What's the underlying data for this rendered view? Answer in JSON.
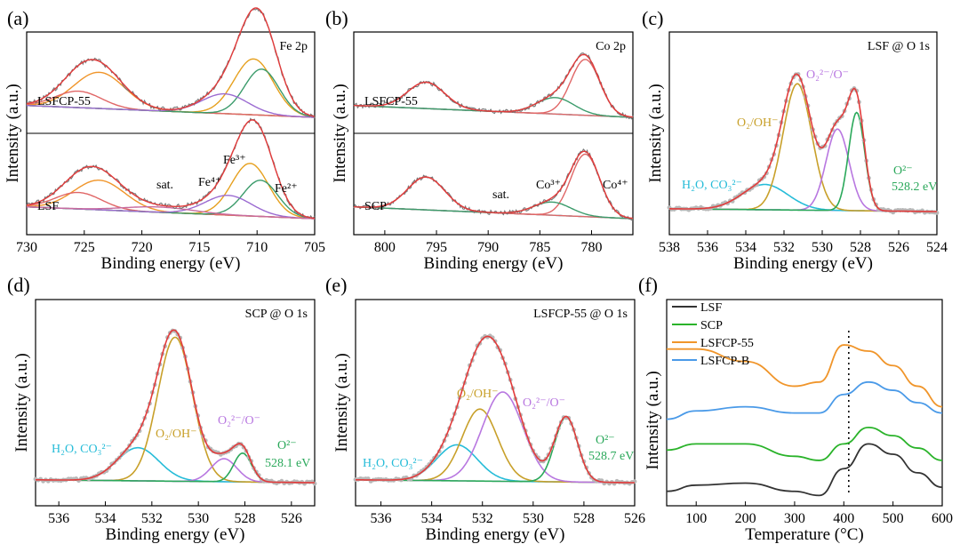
{
  "chart_data": [
    {
      "panel": "a",
      "panel_label": "(a)",
      "type": "line",
      "title": "Fe 2p",
      "xlabel": "Binding energy (eV)",
      "ylabel": "Intensity (a.u.)",
      "xlim": [
        730,
        705
      ],
      "xticks": [
        730,
        725,
        720,
        715,
        710,
        705
      ],
      "stacked_samples": [
        {
          "name": "LSFCP-55",
          "peaks": [
            {
              "center": 723.7,
              "height": 0.55,
              "width": 2.2,
              "color": "#f0952a"
            },
            {
              "center": 725.5,
              "height": 0.25,
              "width": 2.0,
              "color": "#e06666"
            },
            {
              "center": 710.3,
              "height": 0.85,
              "width": 1.7,
              "color": "#e6a01e"
            },
            {
              "center": 709.6,
              "height": 0.7,
              "width": 1.5,
              "color": "#3b9b6b"
            },
            {
              "center": 712.8,
              "height": 0.3,
              "width": 2.0,
              "color": "#9b6bd1"
            }
          ]
        },
        {
          "name": "LSF",
          "peaks": [
            {
              "center": 723.7,
              "height": 0.45,
              "width": 2.2,
              "color": "#f0952a"
            },
            {
              "center": 725.5,
              "height": 0.25,
              "width": 2.0,
              "color": "#e06666"
            },
            {
              "center": 710.6,
              "height": 0.8,
              "width": 1.6,
              "color": "#e6a01e"
            },
            {
              "center": 709.7,
              "height": 0.55,
              "width": 1.5,
              "color": "#3b9b6b"
            },
            {
              "center": 712.5,
              "height": 0.3,
              "width": 2.0,
              "color": "#9b6bd1"
            },
            {
              "center": 718.5,
              "height": 0.08,
              "width": 3.0,
              "color": "#c86b9e"
            }
          ]
        }
      ],
      "annotations": [
        "sat.",
        "Fe⁴⁺",
        "Fe³⁺",
        "Fe²⁺"
      ]
    },
    {
      "panel": "b",
      "panel_label": "(b)",
      "type": "line",
      "title": "Co 2p",
      "xlabel": "Binding energy (eV)",
      "ylabel": "Intensity (a.u.)",
      "xlim": [
        803,
        776
      ],
      "xticks": [
        800,
        795,
        790,
        785,
        780
      ],
      "stacked_samples": [
        {
          "name": "LSFCP-55",
          "peaks": [
            {
              "center": 796.0,
              "height": 0.4,
              "width": 1.8,
              "color": "#e06666"
            },
            {
              "center": 780.6,
              "height": 0.85,
              "width": 1.4,
              "color": "#e06666"
            },
            {
              "center": 783.5,
              "height": 0.25,
              "width": 1.8,
              "color": "#3b9b6b"
            }
          ]
        },
        {
          "name": "SCP",
          "peaks": [
            {
              "center": 796.0,
              "height": 0.5,
              "width": 1.8,
              "color": "#e06666"
            },
            {
              "center": 780.6,
              "height": 0.95,
              "width": 1.4,
              "color": "#e06666"
            },
            {
              "center": 783.8,
              "height": 0.2,
              "width": 1.8,
              "color": "#3b9b6b"
            }
          ]
        }
      ],
      "annotations": [
        "sat.",
        "Co³⁺",
        "Co⁴⁺"
      ]
    },
    {
      "panel": "c",
      "panel_label": "(c)",
      "type": "line",
      "title": "LSF @ O 1s",
      "xlabel": "Binding energy (eV)",
      "ylabel": "Intensity (a.u.)",
      "xlim": [
        538,
        524
      ],
      "xticks": [
        538,
        536,
        534,
        532,
        530,
        528,
        526,
        524
      ],
      "peaks": [
        {
          "name": "H₂O, CO₃²⁻",
          "center": 533.0,
          "height": 0.18,
          "width": 1.2,
          "color": "#26bcd8"
        },
        {
          "name": "O₂/OH⁻",
          "center": 531.3,
          "height": 0.9,
          "width": 0.75,
          "color": "#c8a02a"
        },
        {
          "name": "O₂²⁻/O⁻",
          "center": 529.2,
          "height": 0.58,
          "width": 0.6,
          "color": "#b877e0"
        },
        {
          "name": "O²⁻ 528.2 eV",
          "center": 528.2,
          "height": 0.7,
          "width": 0.42,
          "color": "#2aa85a"
        }
      ],
      "labels": {
        "h2o": "H₂O, CO₃²⁻",
        "o2oh": "O₂/OH⁻",
        "o22": "O₂²⁻/O⁻",
        "o2m": "O²⁻",
        "o2e": "528.2 eV"
      }
    },
    {
      "panel": "d",
      "panel_label": "(d)",
      "type": "line",
      "title": "SCP @ O 1s",
      "xlabel": "Binding energy (eV)",
      "ylabel": "Intensity (a.u.)",
      "xlim": [
        537,
        525
      ],
      "xticks": [
        536,
        534,
        532,
        530,
        528,
        526
      ],
      "peaks": [
        {
          "name": "H₂O, CO₃²⁻",
          "center": 532.6,
          "height": 0.23,
          "width": 0.9,
          "color": "#26bcd8"
        },
        {
          "name": "O₂/OH⁻",
          "center": 531.0,
          "height": 1.0,
          "width": 0.75,
          "color": "#c8a02a"
        },
        {
          "name": "O₂²⁻/O⁻",
          "center": 528.9,
          "height": 0.16,
          "width": 0.55,
          "color": "#b877e0"
        },
        {
          "name": "O²⁻ 528.1 eV",
          "center": 528.1,
          "height": 0.2,
          "width": 0.38,
          "color": "#2aa85a"
        }
      ],
      "labels": {
        "h2o": "H₂O, CO₃²⁻",
        "o2oh": "O₂/OH⁻",
        "o22": "O₂²⁻/O⁻",
        "o2m": "O²⁻",
        "o2e": "528.1 eV"
      }
    },
    {
      "panel": "e",
      "panel_label": "(e)",
      "type": "line",
      "title": "LSFCP-55 @ O 1s",
      "xlabel": "Binding energy (eV)",
      "ylabel": "Intensity (a.u.)",
      "xlim": [
        537,
        526
      ],
      "xticks": [
        536,
        534,
        532,
        530,
        528,
        526
      ],
      "peaks": [
        {
          "name": "H₂O, CO₃²⁻",
          "center": 533.0,
          "height": 0.25,
          "width": 0.8,
          "color": "#26bcd8"
        },
        {
          "name": "O₂/OH⁻",
          "center": 532.1,
          "height": 0.5,
          "width": 0.7,
          "color": "#c8a02a"
        },
        {
          "name": "O₂²⁻/O⁻",
          "center": 531.2,
          "height": 0.62,
          "width": 0.8,
          "color": "#b877e0"
        },
        {
          "name": "O²⁻ 528.7 eV",
          "center": 528.7,
          "height": 0.45,
          "width": 0.45,
          "color": "#2aa85a"
        }
      ],
      "labels": {
        "h2o": "H₂O, CO₃²⁻",
        "o2oh": "O₂/OH⁻",
        "o22": "O₂²⁻/O⁻",
        "o2m": "O²⁻",
        "o2e": "528.7 eV"
      }
    },
    {
      "panel": "f",
      "panel_label": "(f)",
      "type": "line",
      "xlabel": "Temperature (°C)",
      "ylabel": "Intensity (a.u.)",
      "xlim": [
        40,
        600
      ],
      "xticks": [
        100,
        200,
        300,
        400,
        500,
        600
      ],
      "reference_line_x": 410,
      "legend_position": "top-left",
      "series": [
        {
          "name": "LSF",
          "color": "#333333",
          "x": [
            40,
            100,
            200,
            300,
            350,
            400,
            450,
            500,
            550,
            600
          ],
          "y": [
            0.07,
            0.1,
            0.11,
            0.07,
            0.05,
            0.18,
            0.3,
            0.25,
            0.16,
            0.09
          ]
        },
        {
          "name": "SCP",
          "color": "#2ab32a",
          "x": [
            40,
            100,
            200,
            300,
            350,
            400,
            450,
            500,
            550,
            600
          ],
          "y": [
            0.27,
            0.3,
            0.3,
            0.24,
            0.22,
            0.3,
            0.38,
            0.34,
            0.28,
            0.22
          ]
        },
        {
          "name": "LSFCP-55",
          "color": "#f0952a",
          "x": [
            40,
            100,
            200,
            300,
            350,
            400,
            450,
            500,
            550,
            600
          ],
          "y": [
            0.76,
            0.76,
            0.7,
            0.58,
            0.6,
            0.78,
            0.75,
            0.68,
            0.58,
            0.48
          ]
        },
        {
          "name": "LSFCP-B",
          "color": "#4a9ae8",
          "x": [
            40,
            100,
            200,
            300,
            350,
            400,
            450,
            500,
            550,
            600
          ],
          "y": [
            0.42,
            0.46,
            0.48,
            0.45,
            0.45,
            0.54,
            0.6,
            0.56,
            0.5,
            0.45
          ]
        }
      ]
    }
  ]
}
